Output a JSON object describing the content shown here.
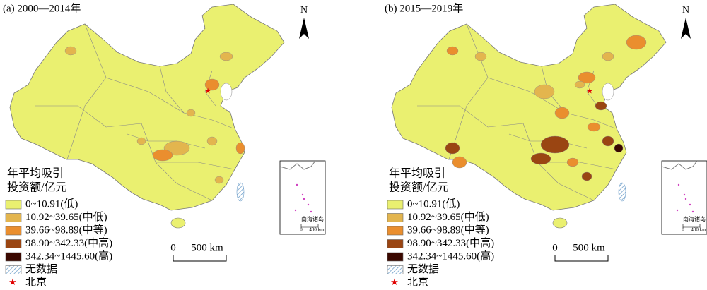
{
  "panels": [
    {
      "title": "(a) 2000—2014年",
      "north": "N",
      "legend": {
        "title": [
          "年平均吸引",
          "投资额/亿元"
        ],
        "items": [
          {
            "label": "0~10.91(低)",
            "color": "#eaf070"
          },
          {
            "label": "10.92~39.65(中低)",
            "color": "#e3b54e"
          },
          {
            "label": "39.66~98.89(中等)",
            "color": "#ea8e2e"
          },
          {
            "label": "98.90~342.33(中高)",
            "color": "#9a4512"
          },
          {
            "label": "342.34~1445.60(高)",
            "color": "#3a0800"
          },
          {
            "label": "无数据",
            "color": "#a8c8e0"
          },
          {
            "label": "北京",
            "color": "#e00000"
          }
        ]
      },
      "scale": [
        "0",
        "500 km"
      ],
      "inset": {
        "label": "南海诸岛",
        "scale": [
          "0",
          "400 km"
        ]
      }
    },
    {
      "title": "(b) 2015—2019年",
      "north": "N",
      "legend": {
        "title": [
          "年平均吸引",
          "投资额/亿元"
        ],
        "items": [
          {
            "label": "0~10.91(低)",
            "color": "#eaf070"
          },
          {
            "label": "10.92~39.65(中低)",
            "color": "#e3b54e"
          },
          {
            "label": "39.66~98.89(中等)",
            "color": "#ea8e2e"
          },
          {
            "label": "98.90~342.33(中高)",
            "color": "#9a4512"
          },
          {
            "label": "342.34~1445.60(高)",
            "color": "#3a0800"
          },
          {
            "label": "无数据",
            "color": "#a8c8e0"
          },
          {
            "label": "北京",
            "color": "#e00000"
          }
        ]
      },
      "scale": [
        "0",
        "500 km"
      ],
      "inset": {
        "label": "南海诸岛",
        "scale": [
          "0",
          "400 km"
        ]
      }
    }
  ]
}
